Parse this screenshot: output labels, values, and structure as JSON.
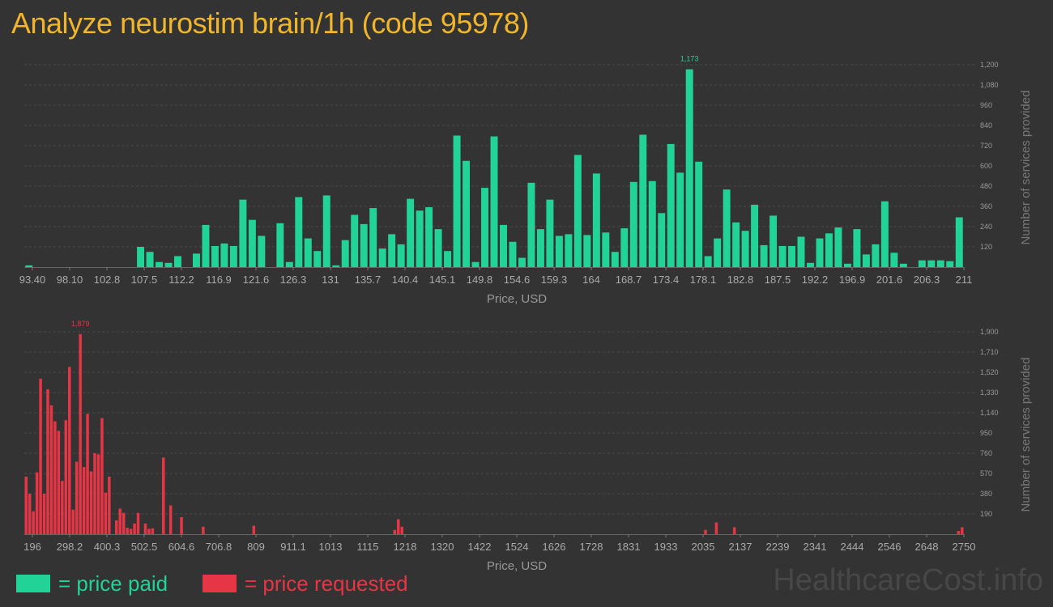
{
  "title": "Analyze neurostim brain/1h (code 95978)",
  "colors": {
    "paid": "#22d398",
    "requested": "#e63646",
    "title": "#f0b52a",
    "background": "#333333"
  },
  "legend": {
    "paid": "= price paid",
    "requested": "= price requested"
  },
  "watermark": "HealthcareCost.info",
  "chart_data": [
    {
      "type": "bar",
      "name": "price paid",
      "xlabel": "Price, USD",
      "ylabel": "Number of services provided",
      "ylim": [
        0,
        1200
      ],
      "yticks": [
        120,
        240,
        360,
        480,
        600,
        720,
        840,
        960,
        1080,
        1200
      ],
      "ytick_labels": [
        "120",
        "240",
        "360",
        "480",
        "600",
        "720",
        "840",
        "960",
        "1,080",
        "1,200"
      ],
      "xtick_labels": [
        "93.40",
        "98.10",
        "102.8",
        "107.5",
        "112.2",
        "116.9",
        "121.6",
        "126.3",
        "131",
        "135.7",
        "140.4",
        "145.1",
        "149.8",
        "154.6",
        "159.3",
        "164",
        "168.7",
        "173.4",
        "178.1",
        "182.8",
        "187.5",
        "192.2",
        "196.9",
        "201.6",
        "206.3",
        "211"
      ],
      "peak_label": "1,173",
      "values": [
        10,
        0,
        0,
        0,
        0,
        0,
        0,
        0,
        0,
        0,
        0,
        0,
        120,
        90,
        30,
        25,
        65,
        0,
        80,
        250,
        125,
        140,
        125,
        400,
        280,
        185,
        0,
        260,
        30,
        415,
        170,
        95,
        425,
        10,
        160,
        310,
        255,
        350,
        110,
        195,
        135,
        405,
        335,
        355,
        225,
        95,
        780,
        630,
        30,
        470,
        775,
        250,
        150,
        55,
        500,
        225,
        400,
        185,
        195,
        665,
        190,
        555,
        205,
        90,
        230,
        505,
        785,
        510,
        320,
        730,
        560,
        1173,
        625,
        65,
        170,
        460,
        265,
        215,
        370,
        130,
        305,
        125,
        125,
        180,
        25,
        170,
        200,
        235,
        20,
        225,
        75,
        135,
        390,
        85,
        20,
        0,
        40,
        40,
        40,
        35,
        295
      ]
    },
    {
      "type": "bar",
      "name": "price requested",
      "xlabel": "Price, USD",
      "ylabel": "Number of services provided",
      "ylim": [
        0,
        1900
      ],
      "yticks": [
        190,
        380,
        570,
        760,
        950,
        1140,
        1330,
        1520,
        1710,
        1900
      ],
      "ytick_labels": [
        "190",
        "380",
        "570",
        "760",
        "950",
        "1,140",
        "1,330",
        "1,520",
        "1,710",
        "1,900"
      ],
      "xtick_labels": [
        "196",
        "298.2",
        "400.3",
        "502.5",
        "604.6",
        "706.8",
        "809",
        "911.1",
        "1013",
        "1115",
        "1218",
        "1320",
        "1422",
        "1524",
        "1626",
        "1728",
        "1831",
        "1933",
        "2035",
        "2137",
        "2239",
        "2341",
        "2444",
        "2546",
        "2648",
        "2750"
      ],
      "peak_label": "1,879",
      "values": [
        540,
        380,
        215,
        580,
        1460,
        380,
        1360,
        1210,
        1060,
        970,
        500,
        1070,
        1570,
        230,
        680,
        1879,
        630,
        1130,
        590,
        760,
        750,
        1090,
        390,
        540,
        0,
        130,
        240,
        200,
        60,
        50,
        100,
        200,
        0,
        100,
        50,
        55,
        0,
        0,
        720,
        0,
        270,
        0,
        0,
        160,
        0,
        0,
        0,
        0,
        0,
        70,
        0,
        0,
        0,
        0,
        0,
        0,
        0,
        0,
        0,
        0,
        0,
        0,
        0,
        80,
        0,
        0,
        0,
        0,
        0,
        0,
        0,
        0,
        0,
        0,
        0,
        0,
        0,
        0,
        0,
        0,
        0,
        0,
        0,
        0,
        0,
        0,
        0,
        0,
        0,
        0,
        0,
        0,
        0,
        0,
        0,
        0,
        0,
        0,
        0,
        0,
        0,
        0,
        40,
        140,
        70,
        0,
        0,
        0,
        0,
        0,
        0,
        0,
        0,
        0,
        0,
        0,
        0,
        0,
        0,
        0,
        0,
        0,
        0,
        0,
        0,
        0,
        0,
        0,
        0,
        0,
        0,
        0,
        0,
        0,
        0,
        0,
        0,
        0,
        0,
        0,
        0,
        0,
        0,
        0,
        0,
        0,
        0,
        0,
        0,
        0,
        0,
        0,
        0,
        0,
        0,
        0,
        0,
        0,
        0,
        0,
        0,
        0,
        0,
        0,
        0,
        0,
        0,
        0,
        0,
        0,
        0,
        0,
        0,
        0,
        0,
        0,
        0,
        0,
        0,
        0,
        0,
        0,
        0,
        0,
        0,
        0,
        0,
        0,
        40,
        0,
        0,
        110,
        0,
        0,
        0,
        0,
        65,
        0,
        0,
        0,
        0,
        0,
        0,
        0,
        0,
        0,
        0,
        0,
        0,
        0,
        0,
        0,
        0,
        0,
        0,
        0,
        0,
        0,
        0,
        0,
        0,
        0,
        0,
        0,
        0,
        0,
        0,
        0,
        0,
        0,
        0,
        0,
        0,
        0,
        0,
        0,
        0,
        0,
        0,
        0,
        0,
        0,
        0,
        0,
        0,
        0,
        0,
        0,
        0,
        0,
        0,
        0,
        0,
        0,
        0,
        0,
        0,
        0,
        30,
        65
      ]
    }
  ]
}
